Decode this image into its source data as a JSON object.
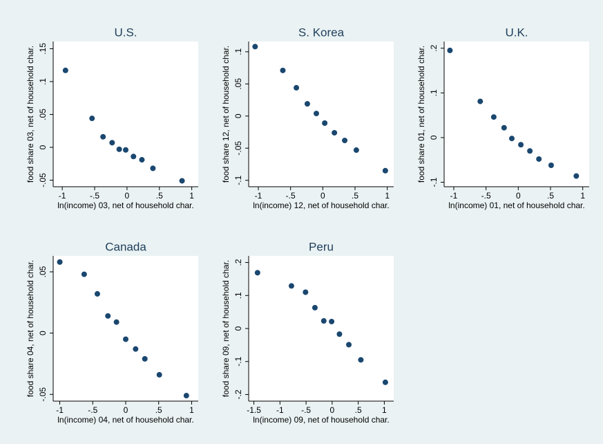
{
  "chart_data": [
    {
      "type": "scatter",
      "title": "U.S.",
      "x_label": "ln(income) 03, net of household char.",
      "y_label": "food share 03, net of household char.",
      "color": "#1a476f",
      "x": [
        -0.95,
        -0.54,
        -0.37,
        -0.23,
        -0.12,
        -0.02,
        0.1,
        0.23,
        0.4,
        0.85
      ],
      "y": [
        0.117,
        0.044,
        0.016,
        0.007,
        -0.003,
        -0.004,
        -0.014,
        -0.019,
        -0.032,
        -0.051
      ],
      "xlim": [
        -1.14,
        1.1
      ],
      "ylim": [
        -0.06,
        0.161
      ],
      "xticks": [
        -1,
        {
          "value": -0.5,
          "label": "-.5"
        },
        0,
        {
          "value": 0.5,
          "label": ".5"
        },
        1
      ],
      "yticks": [
        {
          "value": -0.05,
          "label": "-.05"
        },
        0,
        {
          "value": 0.05,
          "label": ".05"
        },
        {
          "value": 0.1,
          "label": ".1"
        },
        {
          "value": 0.15,
          "label": ".15"
        }
      ]
    },
    {
      "type": "scatter",
      "title": "S. Korea",
      "x_label": "ln(income) 12, net of household char.",
      "y_label": "food share 12, net of household char.",
      "color": "#1a476f",
      "x": [
        -1.05,
        -0.62,
        -0.41,
        -0.24,
        -0.1,
        0.03,
        0.18,
        0.34,
        0.52,
        0.97
      ],
      "y": [
        0.108,
        0.071,
        0.044,
        0.019,
        0.004,
        -0.011,
        -0.026,
        -0.038,
        -0.053,
        -0.085
      ],
      "xlim": [
        -1.15,
        1.1
      ],
      "ylim": [
        -0.11,
        0.116
      ],
      "xticks": [
        -1,
        {
          "value": -0.5,
          "label": "-.5"
        },
        0,
        {
          "value": 0.5,
          "label": ".5"
        },
        1
      ],
      "yticks": [
        {
          "value": -0.1,
          "label": "-.1"
        },
        {
          "value": -0.05,
          "label": "-.05"
        },
        0,
        {
          "value": 0.05,
          "label": ".05"
        },
        {
          "value": 0.1,
          "label": ".1"
        }
      ]
    },
    {
      "type": "scatter",
      "title": "U.K.",
      "x_label": "ln(income) 01, net of household char.",
      "y_label": "food share 01, net of household char.",
      "color": "#1a476f",
      "x": [
        -1.06,
        -0.59,
        -0.38,
        -0.22,
        -0.1,
        0.04,
        0.18,
        0.32,
        0.51,
        0.9
      ],
      "y": [
        0.195,
        0.081,
        0.046,
        0.022,
        -0.002,
        -0.016,
        -0.03,
        -0.048,
        -0.062,
        -0.086
      ],
      "xlim": [
        -1.15,
        1.1
      ],
      "ylim": [
        -0.11,
        0.215
      ],
      "xticks": [
        -1,
        {
          "value": -0.5,
          "label": "-.5"
        },
        0,
        {
          "value": 0.5,
          "label": ".5"
        },
        1
      ],
      "yticks": [
        {
          "value": -0.1,
          "label": "-.1"
        },
        0,
        {
          "value": 0.1,
          "label": ".1"
        },
        {
          "value": 0.2,
          "label": ".2"
        }
      ]
    },
    {
      "type": "scatter",
      "title": "Canada",
      "x_label": "ln(income) 04, net of household char.",
      "y_label": "food share 04, net of household char.",
      "color": "#1a476f",
      "x": [
        -1.0,
        -0.63,
        -0.43,
        -0.27,
        -0.14,
        0.0,
        0.15,
        0.29,
        0.51,
        0.92
      ],
      "y": [
        0.058,
        0.048,
        0.032,
        0.014,
        0.009,
        -0.005,
        -0.013,
        -0.021,
        -0.034,
        -0.051
      ],
      "xlim": [
        -1.1,
        1.1
      ],
      "ylim": [
        -0.0555,
        0.063
      ],
      "xticks": [
        -1,
        {
          "value": -0.5,
          "label": "-.5"
        },
        0,
        {
          "value": 0.5,
          "label": ".5"
        },
        1
      ],
      "yticks": [
        {
          "value": -0.05,
          "label": "-.05"
        },
        0,
        {
          "value": 0.05,
          "label": ".05"
        }
      ]
    },
    {
      "type": "scatter",
      "title": "Peru",
      "x_label": "ln(income) 09, net of household char.",
      "y_label": "food share 09, net of household char.",
      "color": "#1a476f",
      "x": [
        -1.43,
        -0.78,
        -0.51,
        -0.33,
        -0.16,
        -0.01,
        0.14,
        0.32,
        0.55,
        1.02
      ],
      "y": [
        0.169,
        0.129,
        0.11,
        0.063,
        0.023,
        0.021,
        -0.017,
        -0.049,
        -0.095,
        -0.163
      ],
      "xlim": [
        -1.6,
        1.18
      ],
      "ylim": [
        -0.22,
        0.22
      ],
      "xticks": [
        -1.5,
        -1,
        {
          "value": -0.5,
          "label": "-.5"
        },
        0,
        {
          "value": 0.5,
          "label": ".5"
        },
        1
      ],
      "yticks": [
        {
          "value": -0.2,
          "label": "-.2"
        },
        {
          "value": -0.1,
          "label": "-.1"
        },
        0,
        {
          "value": 0.1,
          "label": ".1"
        },
        {
          "value": 0.2,
          "label": ".2"
        }
      ]
    }
  ]
}
